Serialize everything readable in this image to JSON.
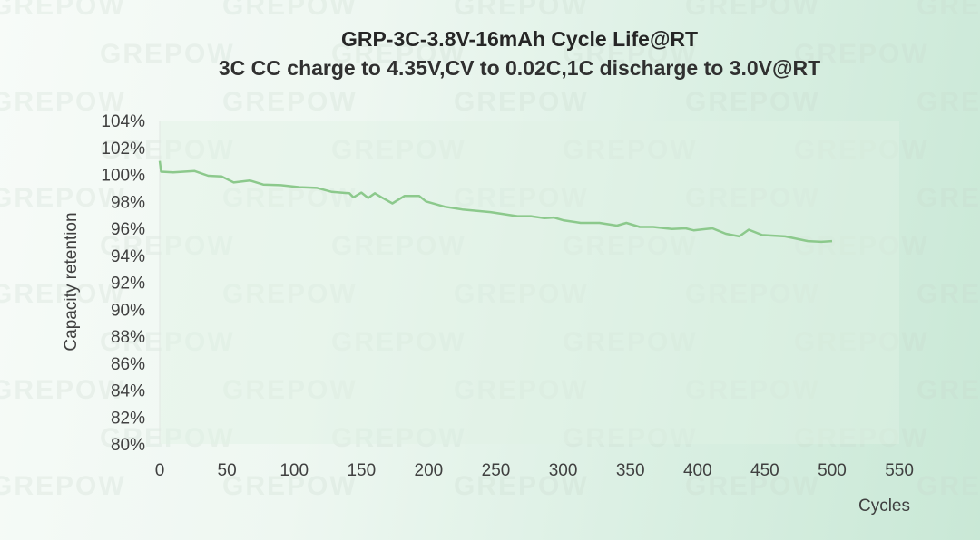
{
  "watermark": "GREPOW",
  "chart_data": {
    "type": "line",
    "title": "GRP-3C-3.8V-16mAh Cycle Life@RT",
    "subtitle": "3C CC charge to 4.35V,CV to 0.02C,1C discharge to 3.0V@RT",
    "xlabel": "Cycles",
    "ylabel": "Capacity retention",
    "xlim": [
      0,
      550
    ],
    "ylim": [
      80,
      104
    ],
    "x_ticks": [
      0,
      50,
      100,
      150,
      200,
      250,
      300,
      350,
      400,
      450,
      500,
      550
    ],
    "y_ticks": [
      "80%",
      "82%",
      "84%",
      "86%",
      "88%",
      "90%",
      "92%",
      "94%",
      "96%",
      "98%",
      "100%",
      "102%",
      "104%"
    ],
    "grid": false,
    "line_color": "#8cc98c",
    "series": [
      {
        "points": [
          [
            0,
            101.0
          ],
          [
            1,
            100.2
          ],
          [
            10,
            100.15
          ],
          [
            26,
            100.25
          ],
          [
            36,
            99.9
          ],
          [
            46,
            99.85
          ],
          [
            55,
            99.4
          ],
          [
            67,
            99.55
          ],
          [
            77,
            99.25
          ],
          [
            90,
            99.2
          ],
          [
            104,
            99.05
          ],
          [
            117,
            99.0
          ],
          [
            128,
            98.7
          ],
          [
            141,
            98.6
          ],
          [
            144,
            98.3
          ],
          [
            150,
            98.65
          ],
          [
            155,
            98.25
          ],
          [
            160,
            98.6
          ],
          [
            165,
            98.3
          ],
          [
            173,
            97.85
          ],
          [
            182,
            98.4
          ],
          [
            193,
            98.4
          ],
          [
            198,
            98.0
          ],
          [
            212,
            97.6
          ],
          [
            225,
            97.4
          ],
          [
            246,
            97.2
          ],
          [
            266,
            96.9
          ],
          [
            276,
            96.9
          ],
          [
            286,
            96.75
          ],
          [
            293,
            96.8
          ],
          [
            300,
            96.6
          ],
          [
            313,
            96.4
          ],
          [
            327,
            96.4
          ],
          [
            340,
            96.2
          ],
          [
            347,
            96.4
          ],
          [
            357,
            96.1
          ],
          [
            367,
            96.1
          ],
          [
            381,
            95.95
          ],
          [
            391,
            96.0
          ],
          [
            397,
            95.85
          ],
          [
            411,
            96.0
          ],
          [
            421,
            95.6
          ],
          [
            431,
            95.4
          ],
          [
            438,
            95.9
          ],
          [
            448,
            95.5
          ],
          [
            465,
            95.4
          ],
          [
            482,
            95.05
          ],
          [
            492,
            95.0
          ],
          [
            500,
            95.05
          ]
        ]
      }
    ]
  }
}
